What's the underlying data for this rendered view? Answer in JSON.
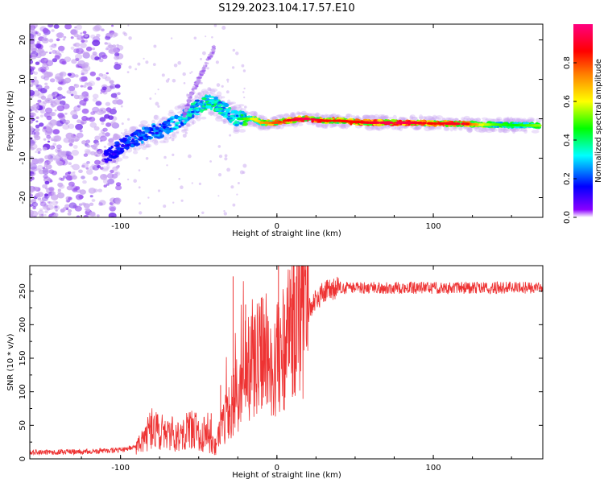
{
  "title": "S129.2023.104.17.57.E10",
  "colors": {
    "snr_line": "#ee3333",
    "scatter_faint": "#c8a6f0",
    "scatter_mid": "#9a55f0",
    "scatter_dark": "#6a1fe8"
  },
  "chart_data": [
    {
      "type": "heatmap",
      "title": "",
      "xlabel": "Height of straight line (km)",
      "ylabel": "Frequency (Hz)",
      "xlim": [
        -158,
        170
      ],
      "ylim": [
        -25,
        24
      ],
      "xticks": [
        -100,
        0,
        100
      ],
      "yticks": [
        20,
        10,
        0,
        -10,
        -20
      ],
      "colorbar": {
        "label": "Normalized spectral amplitude",
        "range": [
          0.0,
          1.0
        ],
        "ticks": [
          0.0,
          0.2,
          0.4,
          0.6,
          0.8
        ],
        "tick_labels": [
          "0.0",
          "0.2",
          "0.4",
          "0.6",
          "0.8"
        ],
        "colormap": [
          "#7a00ff",
          "#0000ff",
          "#00ffff",
          "#00ff00",
          "#ffff00",
          "#ff8000",
          "#ff0000",
          "#ff0080"
        ]
      },
      "ridge": {
        "x": [
          -110,
          -100,
          -90,
          -80,
          -75,
          -70,
          -65,
          -60,
          -55,
          -50,
          -45,
          -40,
          -35,
          -30,
          -25,
          -20,
          -15,
          -10,
          -5,
          0,
          5,
          10,
          15,
          20,
          30,
          40,
          50,
          60,
          70,
          80,
          90,
          100,
          110,
          120,
          130,
          140,
          150,
          160,
          168
        ],
        "y": [
          -10,
          -7,
          -5,
          -3,
          -3,
          -2,
          -1,
          0,
          2,
          3,
          4,
          4,
          3,
          1,
          0,
          0,
          0,
          -1,
          -1,
          -1,
          -0.5,
          -0.3,
          0,
          0,
          -0.5,
          -0.5,
          -0.8,
          -1,
          -1,
          -1,
          -1,
          -1.2,
          -1.2,
          -1.3,
          -1.5,
          -1.5,
          -1.6,
          -1.7,
          -1.7
        ],
        "amplitude": [
          0.15,
          0.2,
          0.25,
          0.3,
          0.3,
          0.3,
          0.35,
          0.35,
          0.4,
          0.4,
          0.45,
          0.45,
          0.4,
          0.4,
          0.4,
          0.5,
          0.6,
          0.7,
          0.75,
          0.8,
          0.85,
          0.9,
          0.95,
          0.95,
          0.85,
          0.85,
          0.85,
          0.9,
          0.95,
          0.95,
          0.9,
          0.85,
          0.9,
          0.9,
          0.6,
          0.5,
          0.45,
          0.5,
          0.55
        ]
      },
      "branch": {
        "x": [
          -60,
          -55,
          -50,
          -45,
          -40
        ],
        "y": [
          0,
          6,
          10,
          14,
          18
        ]
      }
    },
    {
      "type": "line",
      "title": "",
      "xlabel": "Height of straight line (km)",
      "ylabel": "SNR (10 * v/v)",
      "xlim": [
        -158,
        170
      ],
      "ylim": [
        0,
        288
      ],
      "xticks": [
        -100,
        0,
        100
      ],
      "yticks": [
        0,
        50,
        100,
        150,
        200,
        250
      ],
      "series": [
        {
          "x": [
            -158,
            -140,
            -120,
            -100,
            -90,
            -85,
            -80,
            -75,
            -70,
            -65,
            -60,
            -55,
            -50,
            -45,
            -40,
            -35,
            -30,
            -25,
            -20,
            -15,
            -10,
            -5,
            0,
            5,
            10,
            15,
            20,
            25,
            30,
            40,
            50,
            60,
            80,
            100,
            120,
            140,
            160,
            170
          ],
          "y": [
            10,
            10,
            11,
            13,
            18,
            30,
            45,
            40,
            40,
            35,
            40,
            45,
            40,
            35,
            15,
            50,
            75,
            100,
            135,
            140,
            155,
            150,
            150,
            170,
            190,
            205,
            220,
            238,
            248,
            255,
            255,
            255,
            255,
            255,
            255,
            255,
            255,
            255
          ],
          "spikes": [
            {
              "x": -42,
              "y": 68
            },
            {
              "x": -36,
              "y": 110
            },
            {
              "x": -28,
              "y": 272
            },
            {
              "x": -20,
              "y": 230
            },
            {
              "x": -10,
              "y": 240
            },
            {
              "x": 1,
              "y": 288
            },
            {
              "x": 5,
              "y": 230
            }
          ]
        }
      ]
    }
  ]
}
